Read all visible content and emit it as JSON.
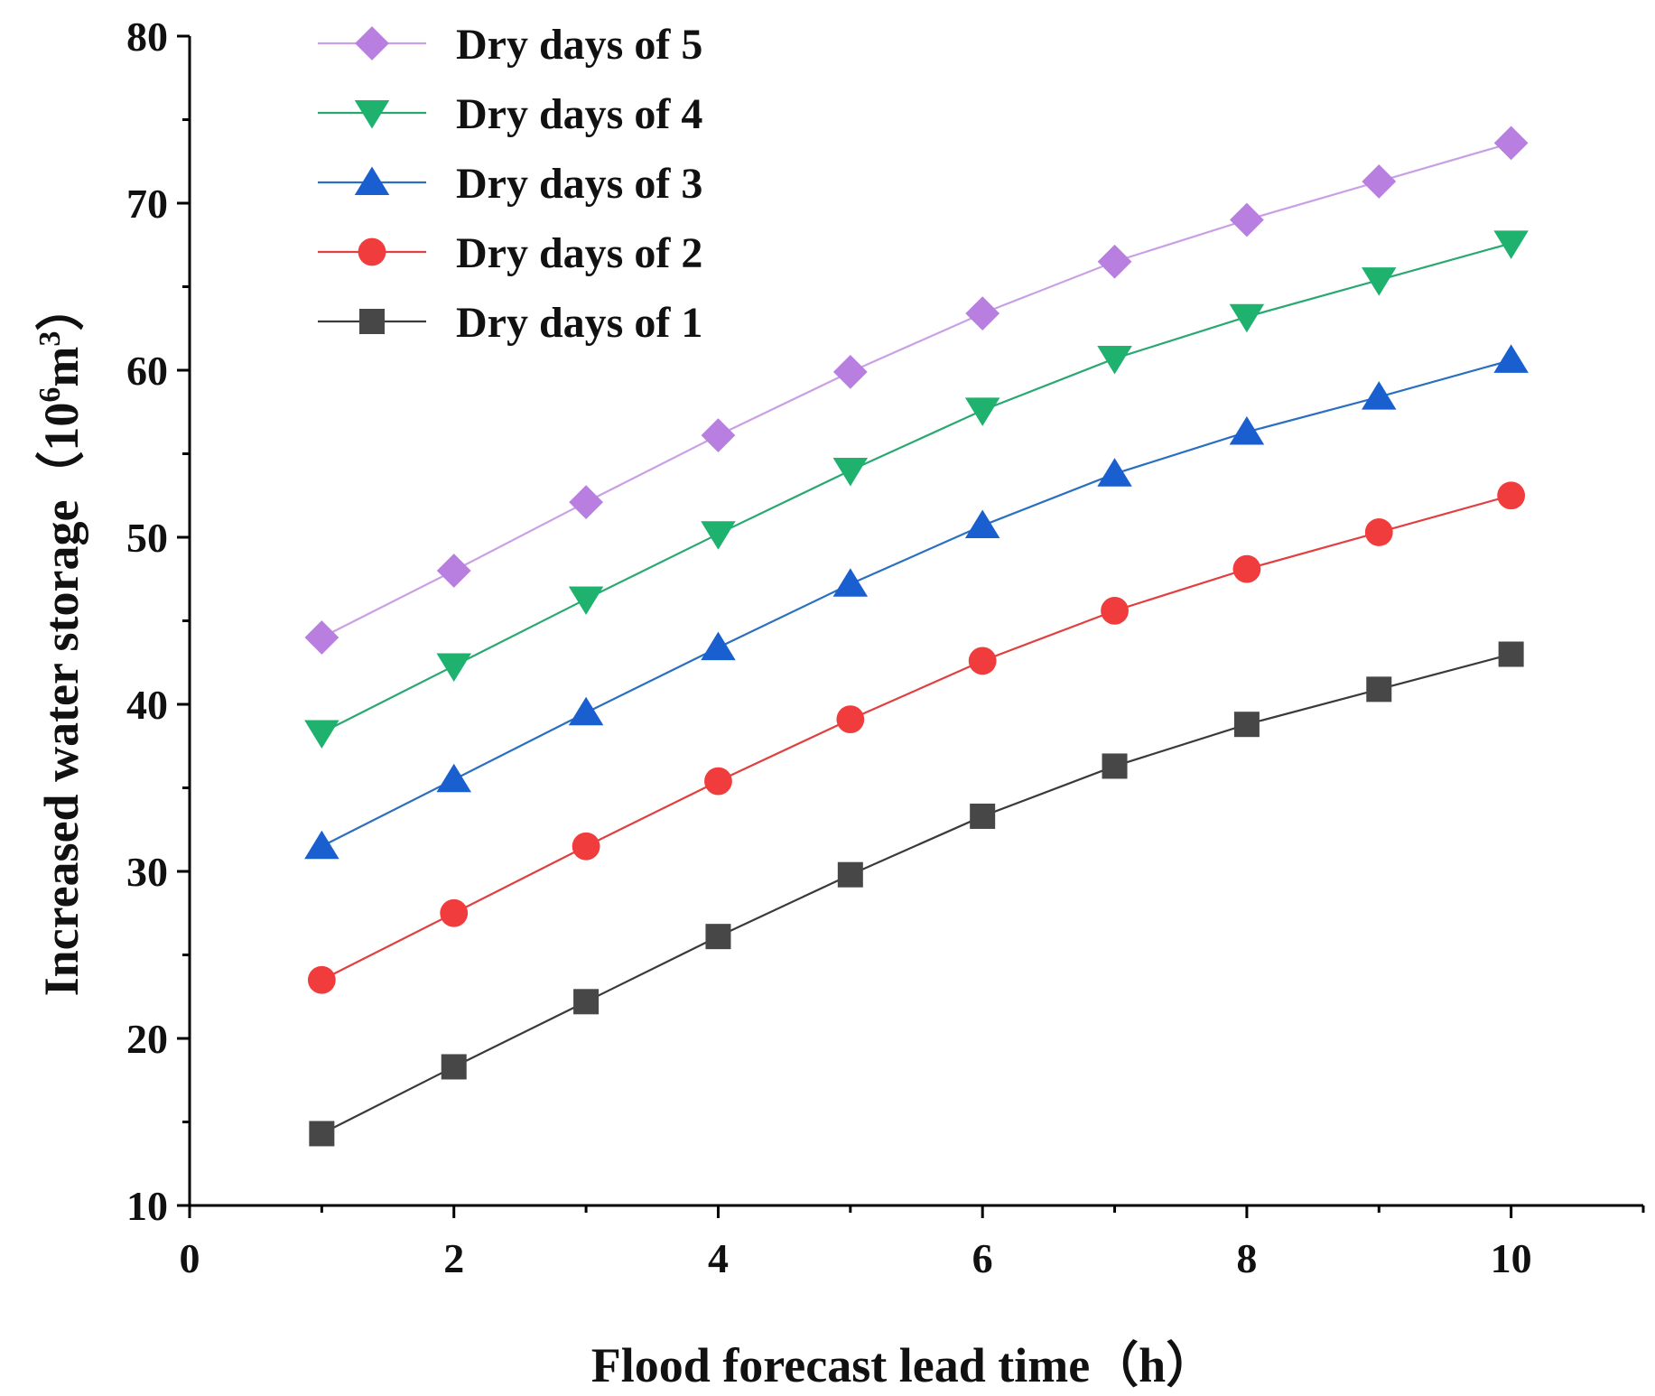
{
  "chart_data": {
    "type": "line",
    "title": "",
    "xlabel": "Flood forecast lead time（h）",
    "ylabel": "Increased water storage（10⁶m³）",
    "ylabel_parts": {
      "prefix": "Increased water storage（",
      "base": "10",
      "exp1": "6",
      "unit": "m",
      "exp2": "3",
      "suffix": "）"
    },
    "xlim": [
      0,
      11
    ],
    "ylim": [
      10,
      80
    ],
    "xticks": [
      0,
      2,
      4,
      6,
      8,
      10
    ],
    "yticks": [
      10,
      20,
      30,
      40,
      50,
      60,
      70,
      80
    ],
    "legend_position": "top-left",
    "grid": false,
    "x": [
      1,
      2,
      3,
      4,
      5,
      6,
      7,
      8,
      9,
      10
    ],
    "series": [
      {
        "name": "Dry days of 5",
        "marker": "diamond",
        "color": "#b97fe0",
        "line_color": "#c9a0e6",
        "values": [
          44.0,
          48.0,
          52.1,
          56.1,
          59.9,
          63.4,
          66.5,
          69.0,
          71.3,
          73.6
        ]
      },
      {
        "name": "Dry days of 4",
        "marker": "triangle-down",
        "color": "#1fb26e",
        "line_color": "#2aa871",
        "values": [
          38.3,
          42.3,
          46.3,
          50.2,
          54.0,
          57.6,
          60.7,
          63.2,
          65.4,
          67.6
        ]
      },
      {
        "name": "Dry days of 3",
        "marker": "triangle-up",
        "color": "#1a5fd0",
        "line_color": "#2a6fc0",
        "values": [
          31.5,
          35.5,
          39.5,
          43.4,
          47.2,
          50.7,
          53.8,
          56.3,
          58.4,
          60.6
        ]
      },
      {
        "name": "Dry days of 2",
        "marker": "circle",
        "color": "#f03c3c",
        "line_color": "#e04040",
        "values": [
          23.5,
          27.5,
          31.5,
          35.4,
          39.1,
          42.6,
          45.6,
          48.1,
          50.3,
          52.5
        ]
      },
      {
        "name": "Dry days of 1",
        "marker": "square",
        "color": "#474747",
        "line_color": "#3a3a3a",
        "values": [
          14.3,
          18.3,
          22.2,
          26.1,
          29.8,
          33.3,
          36.3,
          38.8,
          40.9,
          43.0
        ]
      }
    ]
  }
}
